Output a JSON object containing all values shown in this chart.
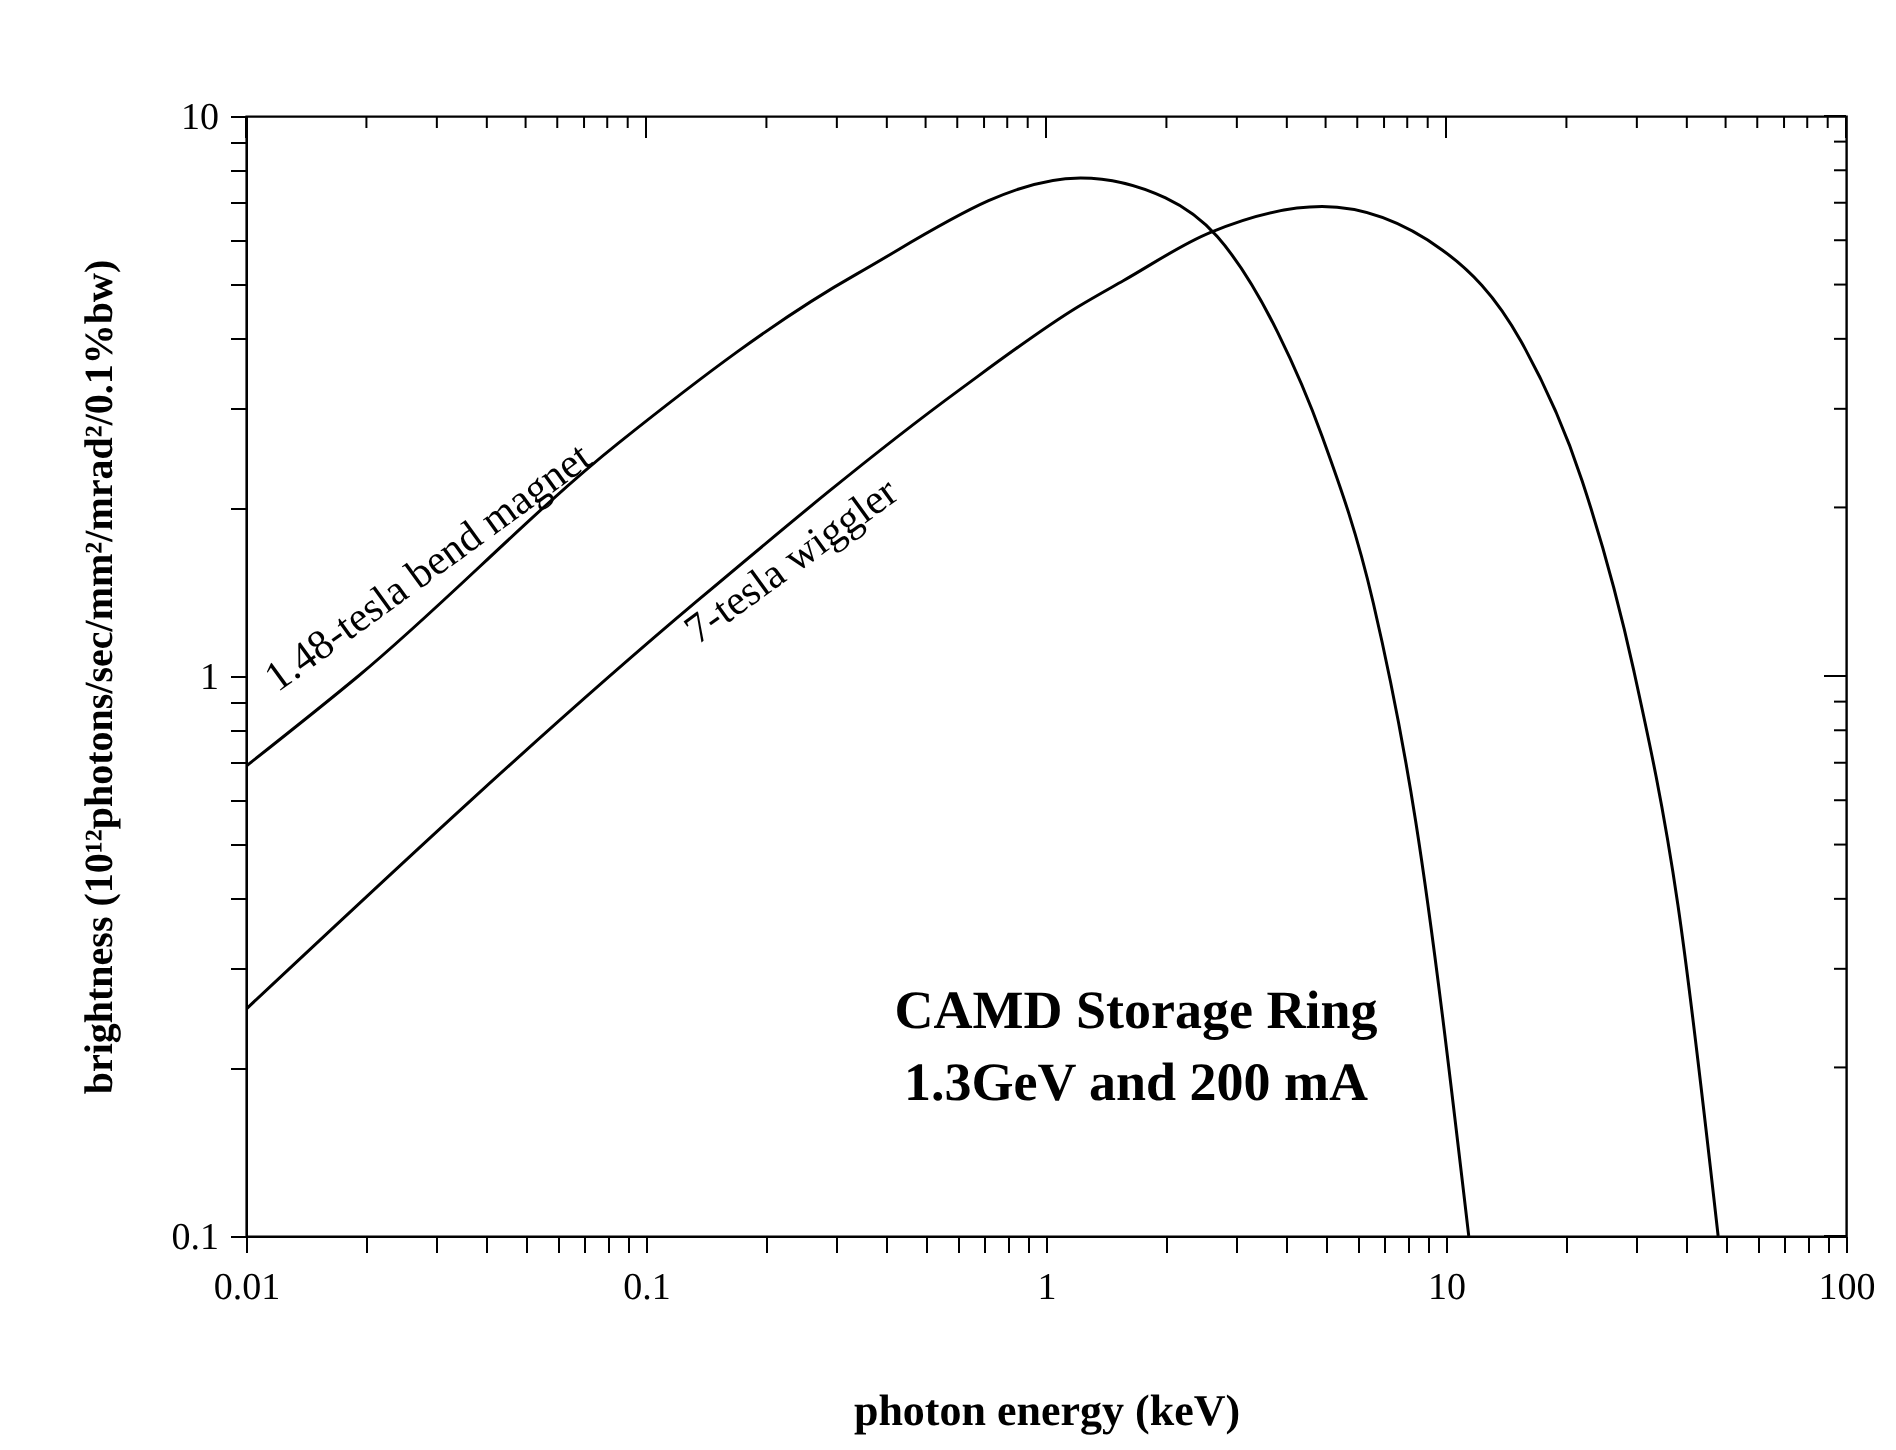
{
  "chart_data": {
    "type": "line",
    "xlabel": "photon energy (keV)",
    "ylabel": "brightness (10¹²photons/sec/mm²/mrad²/0.1%bw)",
    "annotations": [
      "CAMD Storage Ring",
      "1.3GeV and 200 mA"
    ],
    "log": "xy",
    "grid": false,
    "legend": false,
    "marker": "none",
    "line_style": "solid",
    "xlim": [
      0.01,
      100
    ],
    "ylim": [
      0.1,
      10
    ],
    "xticks": [
      0.01,
      {
        "value": 0.02,
        "label": null
      },
      {
        "value": 0.03,
        "label": null
      },
      {
        "value": 0.04,
        "label": null
      },
      {
        "value": 0.05,
        "label": null
      },
      {
        "value": 0.06,
        "label": null
      },
      {
        "value": 0.07,
        "label": null
      },
      {
        "value": 0.08,
        "label": null
      },
      {
        "value": 0.09,
        "label": null
      },
      0.1,
      {
        "value": 0.2,
        "label": null
      },
      {
        "value": 0.3,
        "label": null
      },
      {
        "value": 0.4,
        "label": null
      },
      {
        "value": 0.5,
        "label": null
      },
      {
        "value": 0.6,
        "label": null
      },
      {
        "value": 0.7,
        "label": null
      },
      {
        "value": 0.8,
        "label": null
      },
      {
        "value": 0.9,
        "label": null
      },
      1,
      {
        "value": 2,
        "label": null
      },
      {
        "value": 3,
        "label": null
      },
      {
        "value": 4,
        "label": null
      },
      {
        "value": 5,
        "label": null
      },
      {
        "value": 6,
        "label": null
      },
      {
        "value": 7,
        "label": null
      },
      {
        "value": 8,
        "label": null
      },
      {
        "value": 9,
        "label": null
      },
      10,
      {
        "value": 20,
        "label": null
      },
      {
        "value": 30,
        "label": null
      },
      {
        "value": 40,
        "label": null
      },
      {
        "value": 50,
        "label": null
      },
      {
        "value": 60,
        "label": null
      },
      {
        "value": 70,
        "label": null
      },
      {
        "value": 80,
        "label": null
      },
      {
        "value": 90,
        "label": null
      },
      100
    ],
    "yticks": [
      0.1,
      {
        "value": 0.2,
        "label": null
      },
      {
        "value": 0.3,
        "label": null
      },
      {
        "value": 0.4,
        "label": null
      },
      {
        "value": 0.5,
        "label": null
      },
      {
        "value": 0.6,
        "label": null
      },
      {
        "value": 0.7,
        "label": null
      },
      {
        "value": 0.8,
        "label": null
      },
      {
        "value": 0.9,
        "label": null
      },
      1,
      {
        "value": 2,
        "label": null
      },
      {
        "value": 3,
        "label": null
      },
      {
        "value": 4,
        "label": null
      },
      {
        "value": 5,
        "label": null
      },
      {
        "value": 6,
        "label": null
      },
      {
        "value": 7,
        "label": null
      },
      {
        "value": 8,
        "label": null
      },
      {
        "value": 9,
        "label": null
      },
      10
    ],
    "series": [
      {
        "name": "1.48-tesla bend magnet",
        "color": "#000000",
        "x": [
          0.01,
          0.0191,
          0.085,
          0.336,
          1.22,
          1.99,
          2.68,
          3.8,
          4.9,
          6.58,
          8.4,
          11.4
        ],
        "values": [
          0.69,
          1.0,
          2.6,
          5.22,
          7.75,
          7.14,
          6.09,
          4.1,
          2.68,
          1.35,
          0.55,
          0.1
        ]
      },
      {
        "name": "7-tesla wiggler",
        "color": "#000000",
        "x": [
          0.01,
          0.134,
          0.61,
          1.2,
          1.56,
          2.57,
          4.9,
          9.8,
          15.4,
          21.9,
          29.5,
          38,
          47.9
        ],
        "values": [
          0.254,
          1.36,
          3.25,
          4.56,
          5.08,
          6.19,
          6.89,
          5.76,
          3.96,
          2.23,
          1.02,
          0.39,
          0.1
        ]
      }
    ]
  }
}
